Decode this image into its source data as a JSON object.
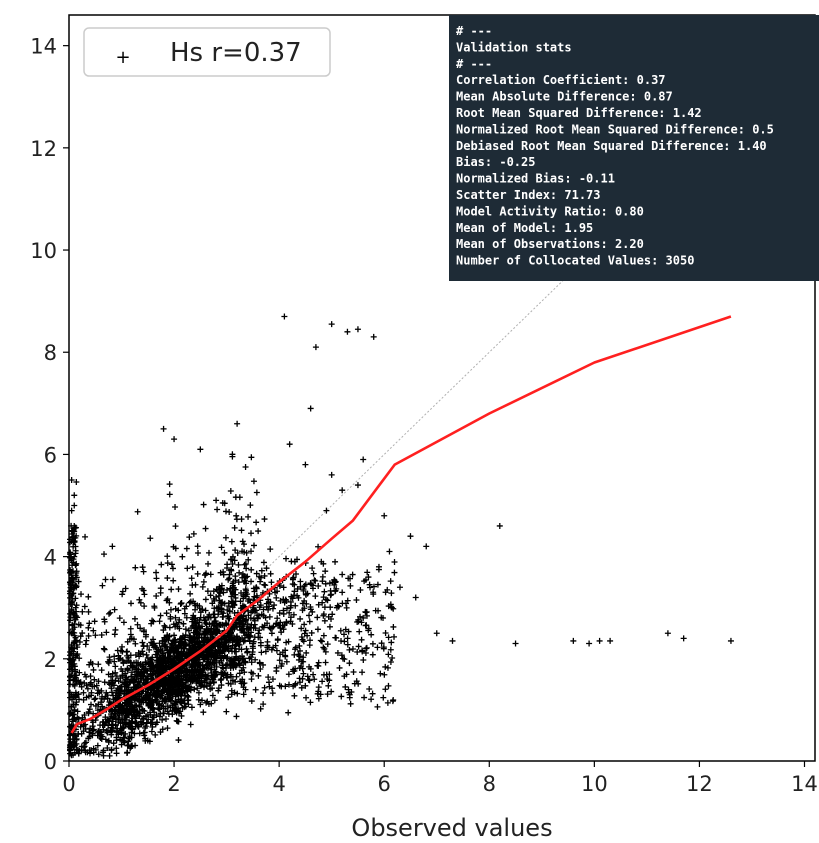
{
  "chart_data": {
    "type": "scatter",
    "xlabel": "Observed values",
    "ylabel": "",
    "xlim": [
      0,
      14.2
    ],
    "ylim": [
      0,
      14.6
    ],
    "x_ticks": [
      "0",
      "2",
      "4",
      "6",
      "8",
      "10",
      "12",
      "14"
    ],
    "y_ticks": [
      "0",
      "2",
      "4",
      "6",
      "8",
      "10",
      "12",
      "14"
    ],
    "grid": false,
    "legend": {
      "position": "top-left",
      "entries": [
        "Hs  r=0.37"
      ]
    },
    "series": [
      {
        "name": "Hs  r=0.37",
        "kind": "scatter",
        "color": "#000000",
        "marker": "+",
        "n": 3050
      },
      {
        "kind": "line",
        "color": "#ff2020",
        "x": [
          0.05,
          0.15,
          0.4,
          0.7,
          1.0,
          1.5,
          2.0,
          2.5,
          3.0,
          3.2,
          3.6,
          4.0,
          4.5,
          5.0,
          5.4,
          6.2,
          8.0,
          10.0,
          12.6
        ],
        "y": [
          0.55,
          0.72,
          0.82,
          1.0,
          1.2,
          1.48,
          1.8,
          2.15,
          2.55,
          2.85,
          3.15,
          3.5,
          3.9,
          4.35,
          4.7,
          5.8,
          6.8,
          7.8,
          8.7
        ]
      },
      {
        "kind": "line",
        "style": "dotted",
        "color": "#b0b0b0",
        "x": [
          0,
          14.6
        ],
        "y": [
          0,
          14.6
        ]
      }
    ],
    "stats_box": {
      "background": "#1e2b36",
      "lines": [
        "# ---",
        "Validation stats",
        "# ---",
        "Correlation Coefficient: 0.37",
        "Mean Absolute Difference: 0.87",
        "Root Mean Squared Difference: 1.42",
        "Normalized Root Mean Squared Difference: 0.5",
        "Debiased Root Mean Squared Difference: 1.40",
        "Bias: -0.25",
        "Normalized Bias: -0.11",
        "Scatter Index: 71.73",
        "Model Activity Ratio: 0.80",
        "Mean of Model: 1.95",
        "Mean of Observations: 2.20",
        "Number of Collocated Values: 3050"
      ]
    },
    "outliers": {
      "x": [
        0.05,
        0.1,
        0.05,
        0.1,
        0.05,
        0.1,
        0.05,
        0.1,
        0.05,
        0.1,
        0.05,
        0.1,
        0.05,
        0.1,
        0.05,
        0.1,
        0.05,
        0.1,
        0.05,
        0.1,
        4.1,
        5.0,
        5.3,
        5.5,
        5.8,
        4.7,
        1.8,
        2.0,
        3.2,
        5.6,
        4.6,
        2.5,
        4.2,
        4.5,
        5.0,
        5.2,
        5.5,
        6.0,
        6.5,
        6.8,
        7.0,
        7.3,
        8.2,
        8.5,
        9.6,
        9.9,
        10.1,
        10.3,
        11.4,
        11.7,
        12.6,
        6.3,
        5.9,
        6.1,
        4.9,
        5.1,
        1.2,
        0.9,
        1.5,
        2.8,
        3.6,
        4.3,
        5.2,
        5.7,
        6.6,
        0.2,
        0.4,
        0.3,
        0.6
      ],
      "y": [
        5.5,
        5.2,
        4.9,
        4.6,
        4.3,
        4.0,
        3.7,
        3.4,
        3.1,
        2.8,
        2.5,
        2.2,
        1.9,
        1.6,
        1.3,
        1.0,
        0.7,
        0.5,
        0.3,
        5.0,
        8.7,
        8.55,
        8.4,
        8.45,
        8.3,
        8.1,
        6.5,
        6.3,
        6.6,
        5.9,
        6.9,
        6.1,
        6.2,
        5.8,
        5.6,
        5.3,
        5.4,
        4.8,
        4.4,
        4.2,
        2.5,
        2.35,
        4.6,
        2.3,
        2.35,
        2.3,
        2.35,
        2.35,
        2.5,
        2.4,
        2.35,
        3.4,
        3.8,
        4.1,
        4.9,
        3.0,
        0.3,
        0.25,
        0.4,
        5.1,
        4.5,
        3.9,
        3.3,
        3.6,
        3.2,
        0.2,
        0.15,
        0.35,
        0.45
      ]
    }
  }
}
